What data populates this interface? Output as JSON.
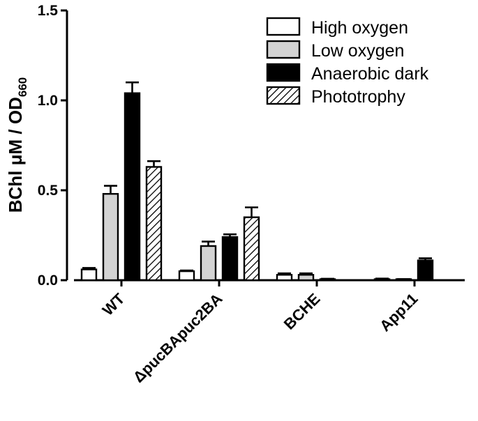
{
  "chart_data": {
    "type": "bar",
    "ylabel": "BChl μM / OD",
    "ylabel_subscript": "660",
    "ylim": [
      0,
      1.5
    ],
    "yticks": [
      "0.0",
      "0.5",
      "1.0",
      "1.5"
    ],
    "ytick_values": [
      0,
      0.5,
      1.0,
      1.5
    ],
    "categories": [
      "WT",
      "ΔpucBApuc2BA",
      "BCHE",
      "App11"
    ],
    "legend_position": "top-right",
    "grid": false,
    "series": [
      {
        "name": "High oxygen",
        "fill": "#ffffff",
        "pattern": "none",
        "values": [
          0.06,
          0.05,
          0.03,
          0.005
        ],
        "errors": [
          0.008,
          0.004,
          0.008,
          0.004
        ]
      },
      {
        "name": "Low oxygen",
        "fill": "#d3d3d3",
        "pattern": "none",
        "values": [
          0.48,
          0.19,
          0.03,
          0.003
        ],
        "errors": [
          0.045,
          0.025,
          0.008,
          0.003
        ]
      },
      {
        "name": "Anaerobic dark",
        "fill": "#000000",
        "pattern": "none",
        "values": [
          1.04,
          0.24,
          0.005,
          0.11
        ],
        "errors": [
          0.06,
          0.015,
          0.003,
          0.012
        ]
      },
      {
        "name": "Phototrophy",
        "fill": "#ffffff",
        "pattern": "diagonal-hatch",
        "values": [
          0.63,
          0.35,
          0.0,
          0.0
        ],
        "errors": [
          0.032,
          0.055,
          0,
          0
        ]
      }
    ]
  }
}
